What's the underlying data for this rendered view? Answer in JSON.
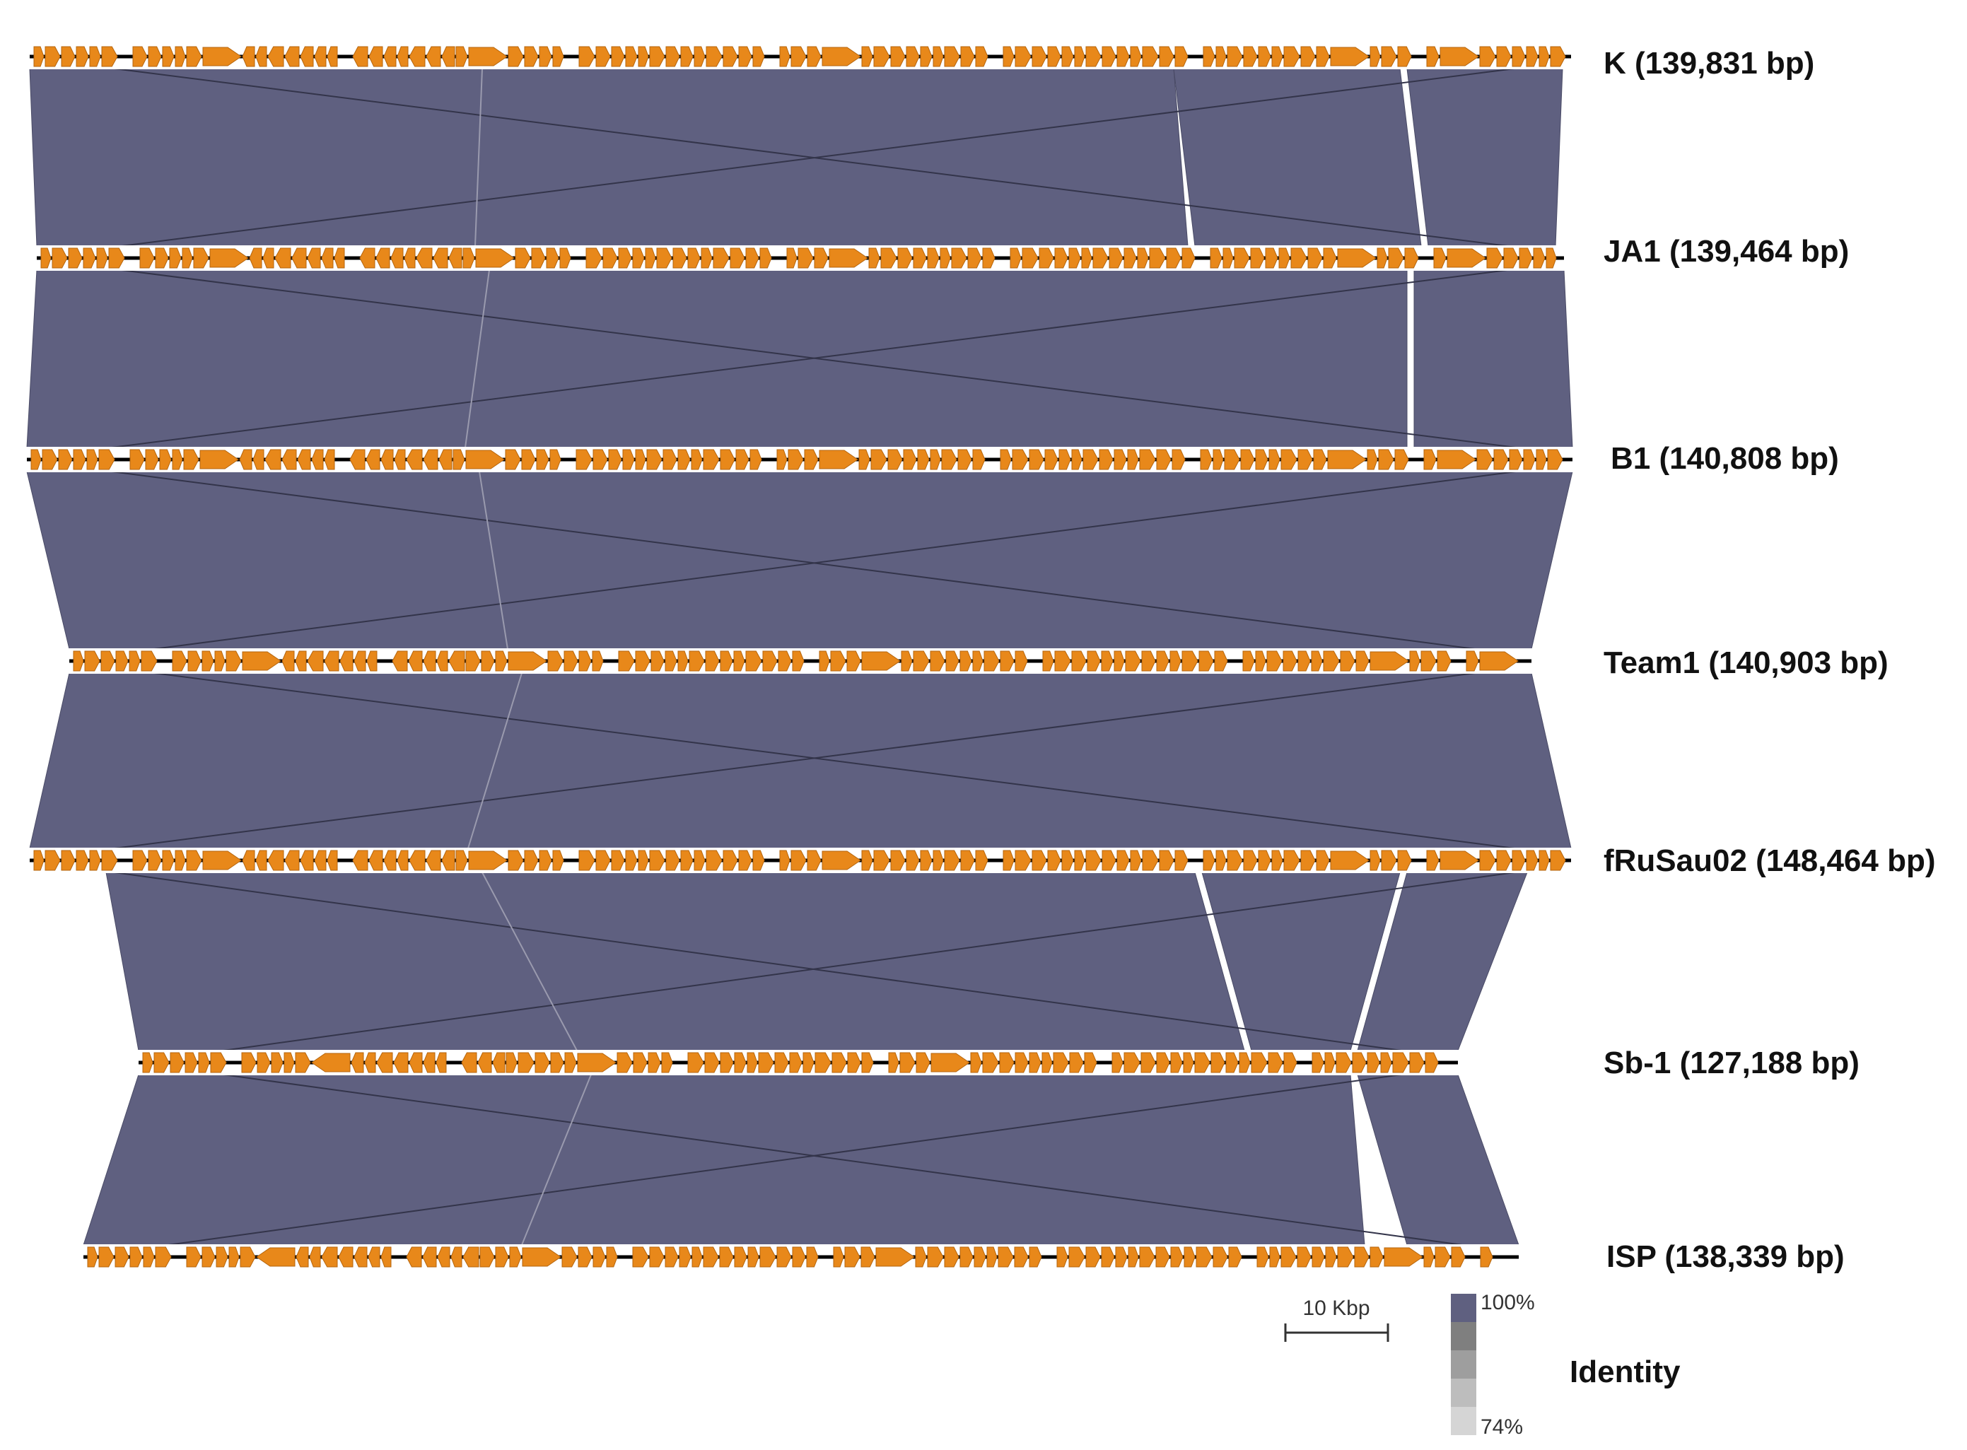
{
  "genomes": [
    {
      "name": "K (139,831 bp)"
    },
    {
      "name": "JA1 (139,464 bp)"
    },
    {
      "name": "B1 (140,808 bp)"
    },
    {
      "name": "Team1 (140,903 bp)"
    },
    {
      "name": "fRuSau02 (148,464 bp)"
    },
    {
      "name": "Sb-1 (127,188 bp)"
    },
    {
      "name": "ISP (138,339 bp)"
    }
  ],
  "scale_bar": {
    "label": "10 Kbp"
  },
  "identity_legend": {
    "title": "Identity",
    "max_label": "100%",
    "min_label": "74%"
  },
  "colors": {
    "match_block": "#5f6080",
    "gene_arrow": "#e8881a",
    "backbone": "#000000",
    "legend_ramp": [
      "#5f6080",
      "#7f7f7f",
      "#9e9e9e",
      "#bdbdbd",
      "#d5d5d5"
    ]
  }
}
